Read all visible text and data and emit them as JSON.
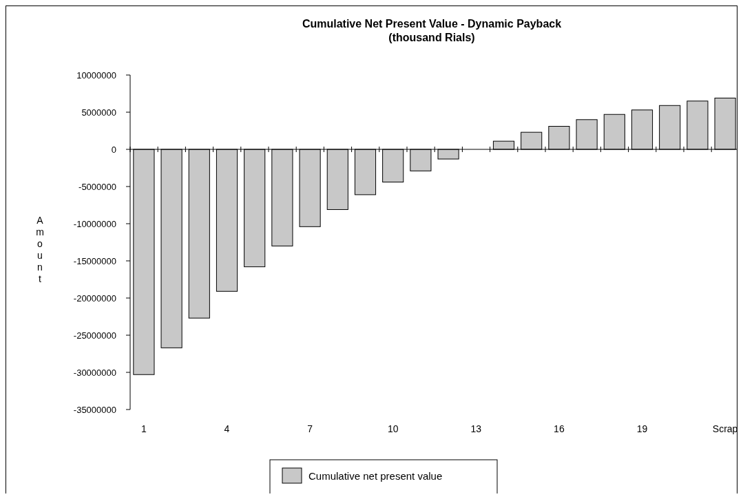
{
  "chart_data": {
    "type": "bar",
    "title": "Cumulative Net Present Value - Dynamic Payback",
    "subtitle": "(thousand Rials)",
    "ylabel": "Amount",
    "categories": [
      "1",
      null,
      null,
      "4",
      null,
      null,
      "7",
      null,
      null,
      "10",
      null,
      null,
      "13",
      null,
      null,
      "16",
      null,
      null,
      "19",
      null,
      null,
      "Scrap"
    ],
    "series": [
      {
        "name": "Cumulative net present value",
        "color": "#c8c8c8",
        "values": [
          -30300000,
          -26700000,
          -22700000,
          -19100000,
          -15800000,
          -13000000,
          -10400000,
          -8100000,
          -6100000,
          -4400000,
          -2900000,
          -1300000,
          0,
          1100000,
          2300000,
          3100000,
          4000000,
          4700000,
          5300000,
          5900000,
          6500000,
          6900000
        ]
      }
    ],
    "ylim": [
      -35000000,
      10000000
    ],
    "yticks": [
      -35000000,
      -30000000,
      -25000000,
      -20000000,
      -15000000,
      -10000000,
      -5000000,
      0,
      5000000,
      10000000
    ],
    "ref_lines": [
      {
        "axis": "y",
        "value": 0,
        "color": "#000000"
      }
    ],
    "grid": false,
    "legend": "bottom"
  }
}
